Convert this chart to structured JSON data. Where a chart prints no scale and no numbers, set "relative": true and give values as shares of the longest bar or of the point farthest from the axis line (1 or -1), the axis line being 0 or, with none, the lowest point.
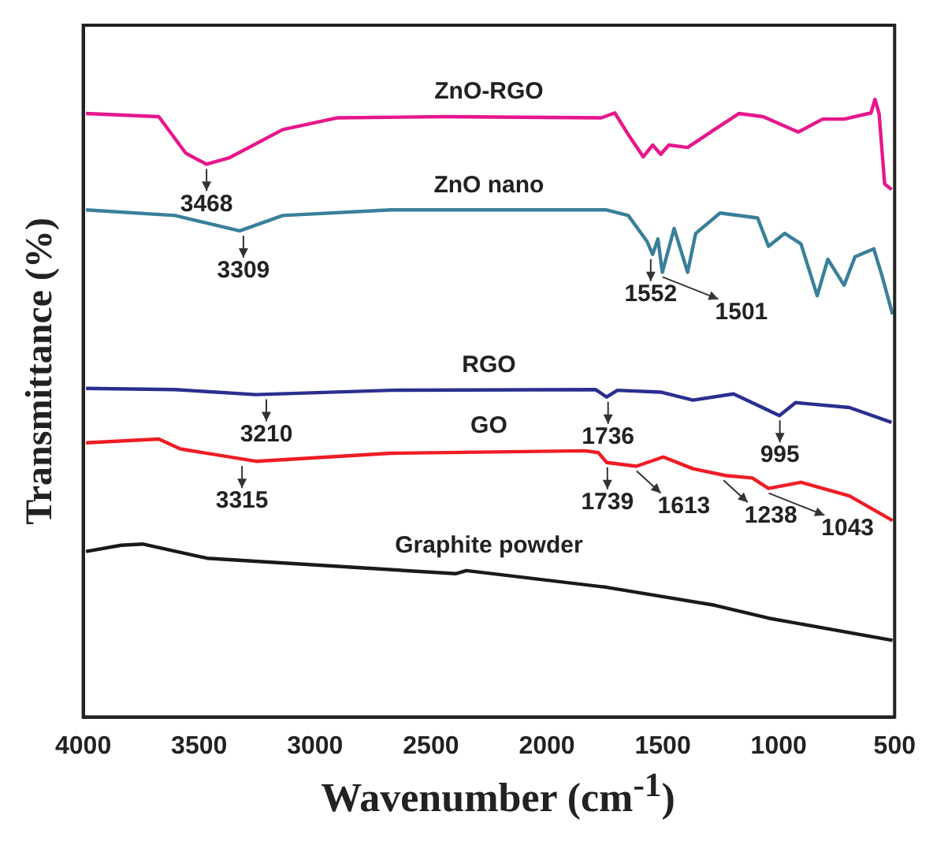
{
  "chart_data": {
    "type": "line",
    "relative": true,
    "xlabel": "Wavenumber (cm$^{-1}$)",
    "ylabel": "Transmittance (%)",
    "xlim": [
      4000,
      500
    ],
    "xticks": [
      4000,
      3500,
      3000,
      2500,
      2000,
      1500,
      1000,
      500
    ],
    "series": [
      {
        "name": "ZnO-RGO",
        "color": "#e6168c",
        "x": [
          3988,
          3674,
          3558,
          3469,
          3372,
          3139,
          2906,
          2441,
          1765,
          1707,
          1649,
          1584,
          1544,
          1509,
          1474,
          1393,
          1277,
          1172,
          1067,
          916,
          811,
          718,
          602,
          585,
          567,
          543,
          513
        ],
        "values": [
          0.977,
          0.972,
          0.913,
          0.895,
          0.905,
          0.951,
          0.97,
          0.972,
          0.97,
          0.978,
          0.943,
          0.907,
          0.926,
          0.911,
          0.926,
          0.922,
          0.951,
          0.977,
          0.972,
          0.947,
          0.968,
          0.968,
          0.978,
          1,
          0.977,
          0.863,
          0.854
        ]
      },
      {
        "name": "ZnO nano",
        "color": "#3a7f9a",
        "x": [
          3988,
          3604,
          3325,
          3139,
          2673,
          1742,
          1649,
          1568,
          1544,
          1521,
          1502,
          1451,
          1393,
          1358,
          1253,
          1091,
          1044,
          974,
          904,
          834,
          788,
          718,
          671,
          590,
          555,
          509
        ],
        "values": [
          0.821,
          0.812,
          0.787,
          0.812,
          0.821,
          0.821,
          0.812,
          0.77,
          0.749,
          0.774,
          0.72,
          0.791,
          0.72,
          0.783,
          0.816,
          0.808,
          0.762,
          0.783,
          0.766,
          0.682,
          0.741,
          0.699,
          0.745,
          0.758,
          0.715,
          0.652
        ]
      },
      {
        "name": "RGO",
        "color": "#2b2e8f",
        "x": [
          3988,
          3604,
          3255,
          2673,
          1789,
          1742,
          1696,
          1509,
          1370,
          1195,
          1137,
          997,
          927,
          695,
          513
        ],
        "values": [
          0.532,
          0.53,
          0.522,
          0.529,
          0.53,
          0.518,
          0.529,
          0.526,
          0.513,
          0.523,
          0.513,
          0.488,
          0.509,
          0.501,
          0.477
        ]
      },
      {
        "name": "GO",
        "color": "#ee1c25",
        "x": [
          3988,
          3674,
          3581,
          3255,
          2673,
          1835,
          1778,
          1742,
          1614,
          1498,
          1370,
          1230,
          1114,
          1044,
          904,
          695,
          509
        ],
        "values": [
          0.444,
          0.45,
          0.434,
          0.414,
          0.427,
          0.431,
          0.428,
          0.412,
          0.406,
          0.421,
          0.402,
          0.391,
          0.387,
          0.37,
          0.38,
          0.358,
          0.318
        ]
      },
      {
        "name": "Graphite powder",
        "color": "#1a1a1a",
        "x": [
          3988,
          3837,
          3744,
          3465,
          2394,
          2347,
          1742,
          1277,
          1044,
          509
        ],
        "values": [
          0.268,
          0.278,
          0.28,
          0.257,
          0.232,
          0.237,
          0.21,
          0.181,
          0.16,
          0.124
        ]
      }
    ],
    "annotations": [
      {
        "text": "3468",
        "x": 3468,
        "y": 0.895
      },
      {
        "text": "3309",
        "x": 3309,
        "y": 0.787
      },
      {
        "text": "1552",
        "x": 1552,
        "y": 0.749
      },
      {
        "text": "1501",
        "x": 1501,
        "y": 0.72
      },
      {
        "text": "3210",
        "x": 3210,
        "y": 0.522
      },
      {
        "text": "1736",
        "x": 1736,
        "y": 0.518
      },
      {
        "text": "995",
        "x": 995,
        "y": 0.488
      },
      {
        "text": "3315",
        "x": 3315,
        "y": 0.414
      },
      {
        "text": "1739",
        "x": 1739,
        "y": 0.412
      },
      {
        "text": "1613",
        "x": 1613,
        "y": 0.406
      },
      {
        "text": "1238",
        "x": 1238,
        "y": 0.391
      },
      {
        "text": "1043",
        "x": 1043,
        "y": 0.37
      }
    ]
  }
}
